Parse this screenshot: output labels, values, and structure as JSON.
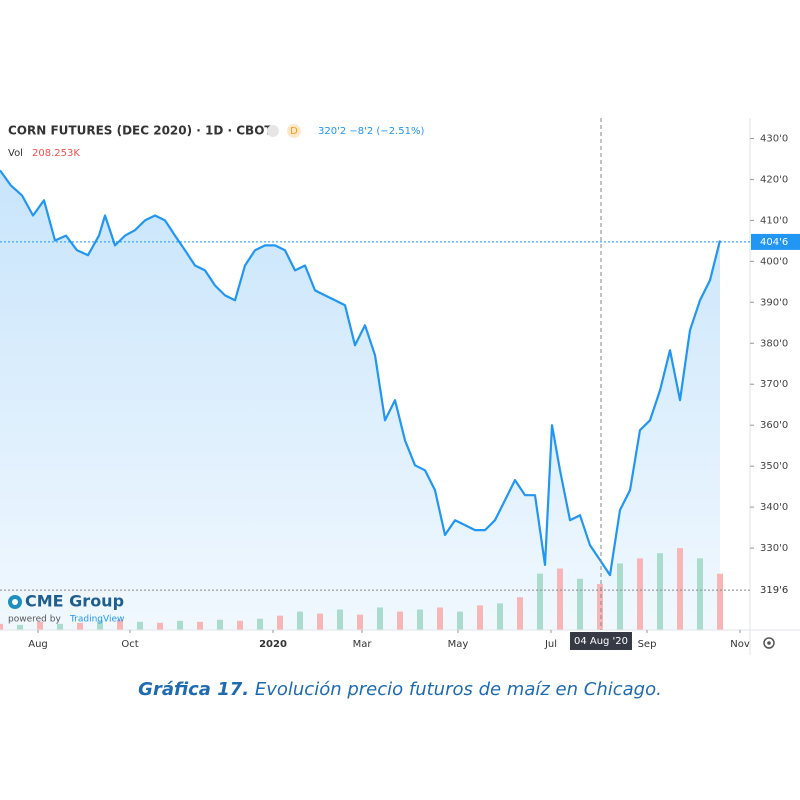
{
  "chart_data": {
    "type": "line",
    "title": "CORN FUTURES (DEC 2020) · 1D · CBOT",
    "interval_badge": "D",
    "quote": "320'2 −8'2 (−2.51%)",
    "vol_label": "Vol",
    "vol_value": "208.253K",
    "brand": "CME Group",
    "powered_by": "powered by",
    "powered_name": "TradingView",
    "caption_label": "Gráfica 17.",
    "caption": "Evolución precio futuros de maíz en Chicago.",
    "x": [
      0,
      2.2,
      4.4,
      6.6,
      8.8,
      11,
      13.2,
      15.4,
      17.6,
      19.8,
      21,
      23,
      25,
      27,
      29,
      31,
      33,
      35,
      37,
      39,
      41,
      43,
      45,
      47,
      49,
      51,
      53,
      55,
      57,
      59,
      61,
      63,
      65,
      67,
      69,
      71,
      73,
      75,
      77,
      79,
      81,
      83,
      85,
      87,
      89,
      91,
      93,
      95,
      97,
      99,
      101,
      103,
      105,
      107,
      109,
      110.4,
      112,
      114,
      116,
      118,
      120,
      122,
      124,
      126,
      128,
      130,
      132,
      134,
      136,
      138,
      140,
      142,
      144
    ],
    "series": [
      {
        "name": "CORN FUTURES (DEC 2020)",
        "color": "#2196f3",
        "values": [
          422.2,
          418.5,
          416.1,
          411.2,
          414.9,
          405.1,
          406.3,
          402.7,
          401.5,
          406.3,
          411.2,
          403.9,
          406.3,
          407.6,
          410,
          411.2,
          410,
          406.3,
          402.7,
          399,
          397.8,
          394.1,
          391.7,
          390.5,
          399,
          402.7,
          403.9,
          403.9,
          402.7,
          397.8,
          399,
          392.9,
          391.7,
          390.5,
          389.3,
          379.5,
          384.4,
          377.1,
          361.2,
          366.1,
          356.3,
          350.2,
          349,
          344.1,
          333.2,
          336.8,
          335.6,
          334.4,
          334.4,
          336.8,
          341.7,
          346.6,
          342.9,
          342.9,
          325.9,
          360,
          349,
          336.8,
          338,
          330.7,
          327.1,
          323.4,
          339.3,
          344.1,
          358.8,
          361.2,
          368.5,
          378.3,
          366.1,
          383.2,
          390.5,
          395.4,
          405.1
        ]
      }
    ],
    "xlim": [
      0,
      150
    ],
    "ylim": [
      310,
      435
    ],
    "xticks": [
      {
        "value": 7.6,
        "label": "Aug"
      },
      {
        "value": 26,
        "label": "Oct"
      },
      {
        "value": 54.6,
        "label": "2020"
      },
      {
        "value": 72.4,
        "label": "Mar"
      },
      {
        "value": 91.6,
        "label": "May"
      },
      {
        "value": 110.2,
        "label": "Jul"
      },
      {
        "value": 129.4,
        "label": "Sep"
      },
      {
        "value": 148,
        "label": "Nov"
      }
    ],
    "yticks": [
      {
        "value": 430,
        "label": "430'0"
      },
      {
        "value": 420,
        "label": "420'0"
      },
      {
        "value": 410,
        "label": "410'0"
      },
      {
        "value": 400,
        "label": "400'0"
      },
      {
        "value": 390,
        "label": "390'0"
      },
      {
        "value": 380,
        "label": "380'0"
      },
      {
        "value": 370,
        "label": "370'0"
      },
      {
        "value": 360,
        "label": "360'0"
      },
      {
        "value": 350,
        "label": "350'0"
      },
      {
        "value": 340,
        "label": "340'0"
      },
      {
        "value": 330,
        "label": "330'0"
      }
    ],
    "price_labels": [
      {
        "value": 404.75,
        "label": "404'6",
        "color": "#2196f3"
      },
      {
        "value": 319.75,
        "label": "319'6",
        "color": "#888888"
      }
    ],
    "crosshair": {
      "x": 120.2,
      "label": "04 Aug '20"
    },
    "volume": {
      "x": [
        0,
        4,
        8,
        12,
        16,
        20,
        24,
        28,
        32,
        36,
        40,
        44,
        48,
        52,
        56,
        60,
        64,
        68,
        72,
        76,
        80,
        84,
        88,
        92,
        96,
        100,
        104,
        108,
        112,
        116,
        120,
        124,
        128,
        132,
        136,
        140,
        144
      ],
      "values": [
        6,
        5,
        8,
        6,
        7,
        9,
        10,
        8,
        7,
        9,
        8,
        10,
        9,
        11,
        14,
        18,
        16,
        20,
        15,
        22,
        18,
        20,
        22,
        18,
        24,
        26,
        32,
        55,
        60,
        50,
        45,
        65,
        70,
        75,
        80,
        70,
        55
      ],
      "colors": [
        "#f7b5b5",
        "#a9dccd",
        "#f7b5b5",
        "#a9dccd",
        "#f7b5b5",
        "#a9dccd",
        "#f7b5b5",
        "#a9dccd",
        "#f7b5b5",
        "#a9dccd",
        "#f7b5b5",
        "#a9dccd",
        "#f7b5b5",
        "#a9dccd",
        "#f7b5b5",
        "#a9dccd",
        "#f7b5b5",
        "#a9dccd",
        "#f7b5b5",
        "#a9dccd",
        "#f7b5b5",
        "#a9dccd",
        "#f7b5b5",
        "#a9dccd",
        "#f7b5b5",
        "#a9dccd",
        "#f7b5b5",
        "#a9dccd",
        "#f7b5b5",
        "#a9dccd",
        "#f7b5b5",
        "#a9dccd",
        "#f7b5b5",
        "#a9dccd",
        "#f7b5b5",
        "#a9dccd",
        "#f7b5b5"
      ],
      "y2lim": [
        0,
        500
      ]
    }
  }
}
